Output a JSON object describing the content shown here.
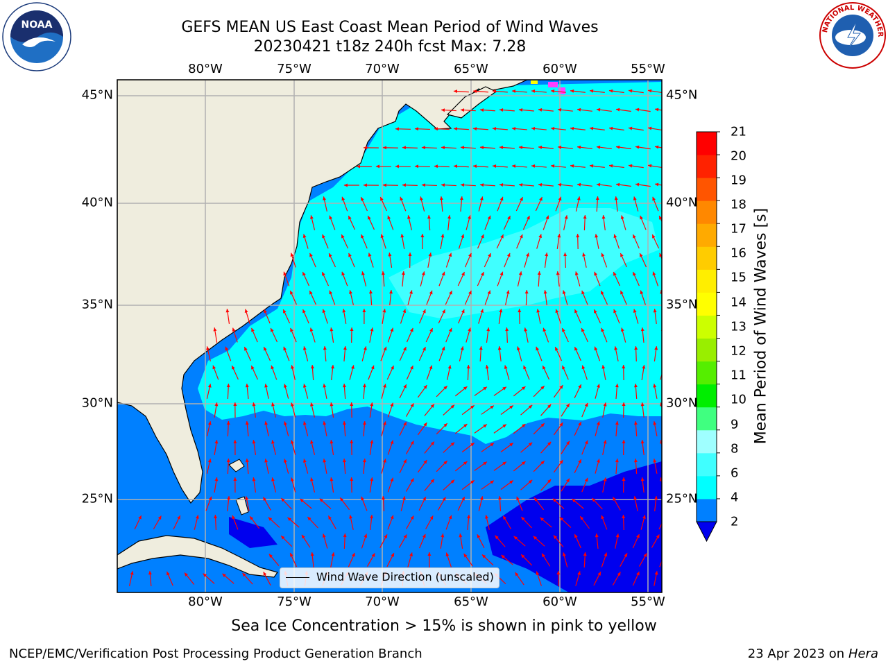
{
  "title": {
    "line1": "GEFS MEAN US East Coast Mean Period of Wind Waves",
    "line2": "20230421 t18z 240h fcst   Max: 7.28"
  },
  "map": {
    "lon_ticks": [
      "80°W",
      "75°W",
      "70°W",
      "65°W",
      "60°W",
      "55°W"
    ],
    "lat_ticks": [
      "45°N",
      "40°N",
      "35°N",
      "30°N",
      "25°N"
    ],
    "legend_label": "Wind Wave Direction (unscaled)",
    "arrow_color": "#ff0000",
    "land_color": "#efedde"
  },
  "colorbar": {
    "label": "Mean Period of Wind Waves [s]",
    "ticks": [
      "21",
      "20",
      "19",
      "18",
      "17",
      "16",
      "15",
      "14",
      "13",
      "12",
      "11",
      "10",
      "9",
      "8",
      "6",
      "4",
      "2"
    ],
    "colors": [
      "#0000ee",
      "#0080ff",
      "#00ffff",
      "#40ffff",
      "#9fffff",
      "#40ff80",
      "#00ee00",
      "#55ee00",
      "#99ee00",
      "#ccff00",
      "#ffff00",
      "#ffee00",
      "#ffcc00",
      "#ffaa00",
      "#ff8800",
      "#ff5500",
      "#ff2200",
      "#ff0000"
    ]
  },
  "ice_note": "Sea Ice Concentration > 15% is shown in pink to yellow",
  "footer": {
    "left": "NCEP/EMC/Verification Post Processing Product Generation Branch",
    "right_date": "23 Apr 2023 on ",
    "right_machine": "Hera"
  },
  "logos": {
    "noaa_text": "NOAA",
    "nws_text": "NATIONAL WEATHER SERVICE"
  }
}
